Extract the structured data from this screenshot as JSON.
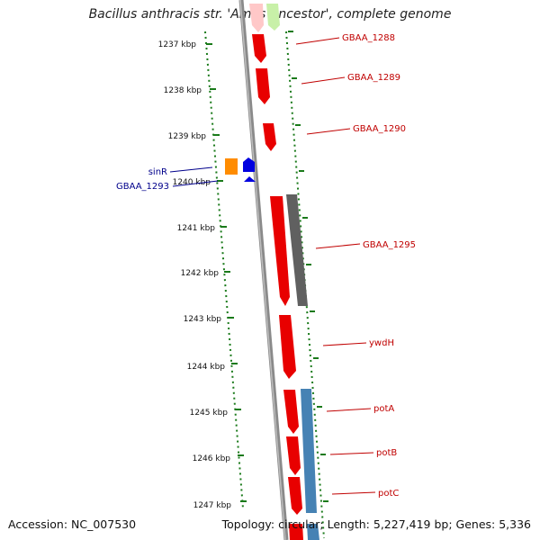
{
  "title": "Bacillus anthracis str. 'Ames Ancestor', complete genome",
  "footer": {
    "accession": "Accession: NC_007530",
    "summary": "Topology: circular; Length: 5,227,419 bp; Genes: 5,336"
  },
  "colors": {
    "forward_gene": "#e80000",
    "reverse_gene": "#0000e0",
    "orange_gene": "#ff8c00",
    "gray_feature": "#606060",
    "blue_feature": "#4682b4",
    "tick": "#1a7a1a",
    "red_label": "#c00000",
    "blue_label": "#00008b"
  },
  "ticks": [
    {
      "label": "1237 kbp"
    },
    {
      "label": "1238 kbp"
    },
    {
      "label": "1239 kbp"
    },
    {
      "label": "1240 kbp"
    },
    {
      "label": "1241 kbp"
    },
    {
      "label": "1242 kbp"
    },
    {
      "label": "1243 kbp"
    },
    {
      "label": "1244 kbp"
    },
    {
      "label": "1245 kbp"
    },
    {
      "label": "1246 kbp"
    },
    {
      "label": "1247 kbp"
    }
  ],
  "genes_right": [
    {
      "label": "GBAA_1288"
    },
    {
      "label": "GBAA_1289"
    },
    {
      "label": "GBAA_1290"
    },
    {
      "label": "GBAA_1295"
    },
    {
      "label": "ywdH"
    },
    {
      "label": "potA"
    },
    {
      "label": "potB"
    },
    {
      "label": "potC"
    }
  ],
  "genes_left": [
    {
      "label": "sinR"
    },
    {
      "label": "GBAA_1293"
    }
  ]
}
